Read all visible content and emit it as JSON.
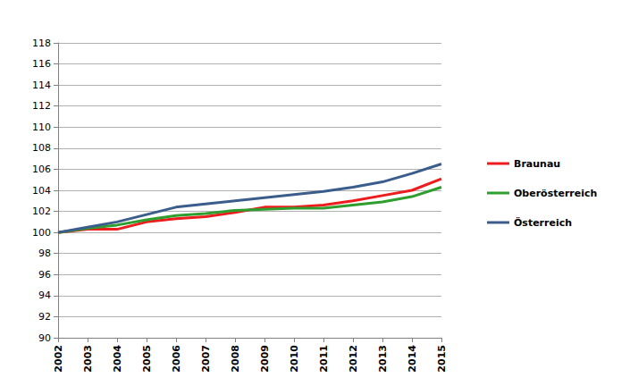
{
  "chart_data": {
    "type": "line",
    "categories": [
      "2002",
      "2003",
      "2004",
      "2005",
      "2006",
      "2007",
      "2008",
      "2009",
      "2010",
      "2011",
      "2012",
      "2013",
      "2014",
      "2015"
    ],
    "series": [
      {
        "name": "Braunau",
        "color": "#ee1c1c",
        "values": [
          100,
          100.3,
          100.3,
          101.0,
          101.3,
          101.5,
          101.9,
          102.4,
          102.4,
          102.6,
          103.0,
          103.5,
          104.0,
          105.1
        ]
      },
      {
        "name": "Oberösterreich",
        "color": "#2e9e2e",
        "values": [
          100,
          100.4,
          100.7,
          101.2,
          101.6,
          101.8,
          102.1,
          102.2,
          102.3,
          102.3,
          102.6,
          102.9,
          103.4,
          104.3
        ]
      },
      {
        "name": "Österreich",
        "color": "#3b5d8c",
        "values": [
          100,
          100.5,
          101.0,
          101.7,
          102.4,
          102.7,
          103.0,
          103.3,
          103.6,
          103.9,
          104.3,
          104.8,
          105.6,
          106.5
        ]
      }
    ],
    "ylim": [
      90,
      118
    ],
    "yticks": [
      90,
      92,
      94,
      96,
      98,
      100,
      102,
      104,
      106,
      108,
      110,
      112,
      114,
      116,
      118
    ],
    "grid": true,
    "legend": "right",
    "marker": "none",
    "line_style": "solid"
  }
}
